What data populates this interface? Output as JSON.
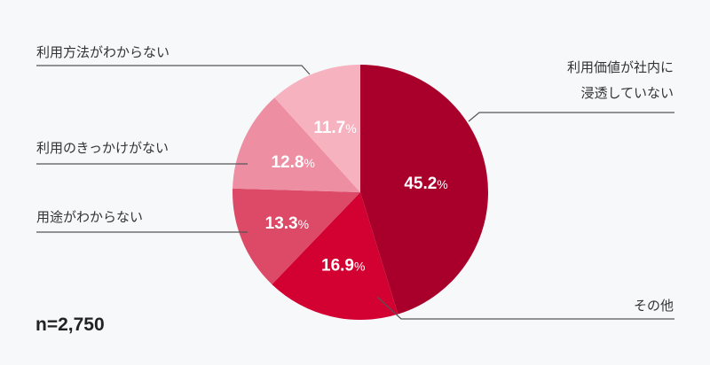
{
  "chart_data": {
    "type": "pie",
    "start": "top",
    "direction": "clockwise",
    "slices": [
      {
        "label": "利用価値が社内に浸透していない",
        "label_lines": [
          "利用価値が社内に",
          "浸透していない"
        ],
        "value": 45.2,
        "display": "45.2",
        "color": "#a8002b"
      },
      {
        "label": "その他",
        "label_lines": [
          "その他"
        ],
        "value": 16.9,
        "display": "16.9",
        "color": "#d30032"
      },
      {
        "label": "用途がわからない",
        "label_lines": [
          "用途がわからない"
        ],
        "value": 13.3,
        "display": "13.3",
        "color": "#dc4a67"
      },
      {
        "label": "利用のきっかけがない",
        "label_lines": [
          "利用のきっかけがない"
        ],
        "value": 12.8,
        "display": "12.8",
        "color": "#ee8ea2"
      },
      {
        "label": "利用方法がわからない",
        "label_lines": [
          "利用方法がわからない"
        ],
        "value": 11.7,
        "display": "11.7",
        "color": "#f7b2c0"
      }
    ],
    "unit": "%",
    "note": "n=2,750"
  }
}
